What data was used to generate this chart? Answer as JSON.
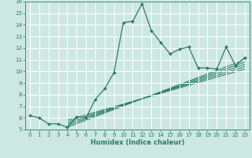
{
  "xlabel": "Humidex (Indice chaleur)",
  "ylabel": "",
  "bg_color": "#cce8e0",
  "line_color": "#2d7a6a",
  "grid_color": "#ffffff",
  "xlim": [
    -0.5,
    23.5
  ],
  "ylim": [
    5,
    16
  ],
  "xticks": [
    0,
    1,
    2,
    3,
    4,
    5,
    6,
    7,
    8,
    9,
    10,
    11,
    12,
    13,
    14,
    15,
    16,
    17,
    18,
    19,
    20,
    21,
    22,
    23
  ],
  "yticks": [
    5,
    6,
    7,
    8,
    9,
    10,
    11,
    12,
    13,
    14,
    15,
    16
  ],
  "main_x": [
    0,
    1,
    2,
    3,
    4,
    5,
    6,
    7,
    8,
    9,
    10,
    11,
    12,
    13,
    14,
    15,
    16,
    17,
    18,
    19,
    20,
    21,
    22,
    23
  ],
  "main_y": [
    6.2,
    6.0,
    5.5,
    5.5,
    5.2,
    6.1,
    6.0,
    7.6,
    8.5,
    9.9,
    14.2,
    14.3,
    15.8,
    13.5,
    12.5,
    11.5,
    11.9,
    12.1,
    10.3,
    10.3,
    10.2,
    12.1,
    10.5,
    11.2
  ],
  "trend_lines": [
    {
      "x0": 4,
      "y0": 5.2,
      "x1": 23,
      "y1": 11.0
    },
    {
      "x0": 4,
      "y0": 5.35,
      "x1": 23,
      "y1": 10.8
    },
    {
      "x0": 4,
      "y0": 5.5,
      "x1": 23,
      "y1": 10.6
    },
    {
      "x0": 4,
      "y0": 5.65,
      "x1": 23,
      "y1": 10.4
    },
    {
      "x0": 4,
      "y0": 5.8,
      "x1": 23,
      "y1": 10.2
    }
  ],
  "tick_fontsize": 5.0,
  "xlabel_fontsize": 6.0
}
